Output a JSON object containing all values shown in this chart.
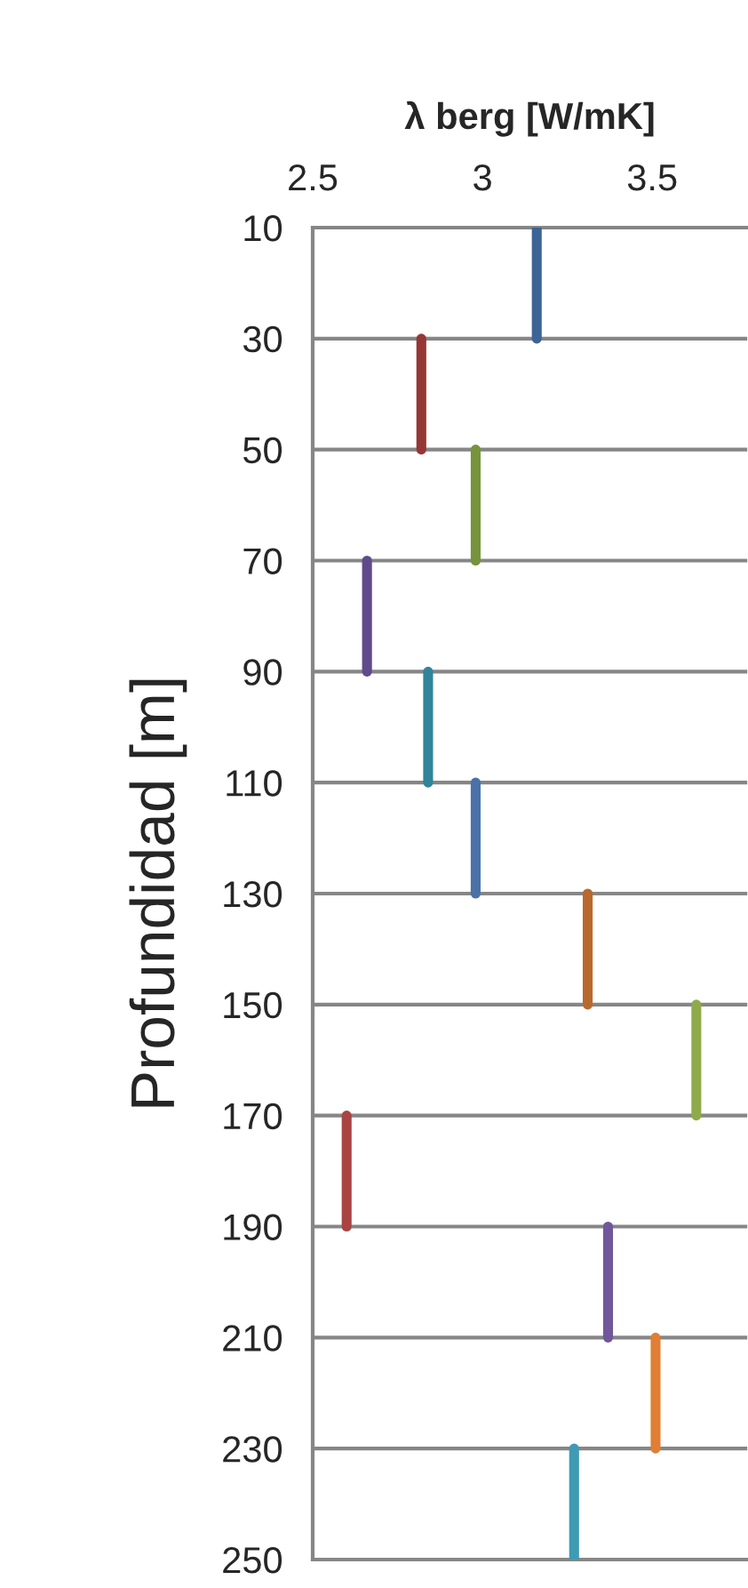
{
  "chart_data": {
    "type": "line",
    "xlabel": "λ berg [W/mK]",
    "ylabel": "Profundidad [m]",
    "xlim": [
      2.5,
      3.78
    ],
    "xticks": [
      2.5,
      3,
      3.5
    ],
    "ylim": [
      250,
      10
    ],
    "yticks": [
      10,
      30,
      50,
      70,
      90,
      110,
      130,
      150,
      170,
      190,
      210,
      230,
      250
    ],
    "grid": "y",
    "marker": "none",
    "line_style": "solid",
    "series": [
      {
        "color": "#3c6496",
        "x": [
          3.16,
          3.16
        ],
        "values": [
          10,
          30
        ]
      },
      {
        "color": "#953735",
        "x": [
          2.82,
          2.82
        ],
        "values": [
          30,
          50
        ]
      },
      {
        "color": "#77933c",
        "x": [
          2.98,
          2.98
        ],
        "values": [
          50,
          70
        ]
      },
      {
        "color": "#5f4b8b",
        "x": [
          2.66,
          2.66
        ],
        "values": [
          70,
          90
        ]
      },
      {
        "color": "#31849b",
        "x": [
          2.84,
          2.84
        ],
        "values": [
          90,
          110
        ]
      },
      {
        "color": "#4a72a8",
        "x": [
          2.98,
          2.98
        ],
        "values": [
          110,
          130
        ]
      },
      {
        "color": "#b9692d",
        "x": [
          3.31,
          3.31
        ],
        "values": [
          130,
          150
        ]
      },
      {
        "color": "#8eaa4a",
        "x": [
          3.63,
          3.63
        ],
        "values": [
          150,
          170
        ]
      },
      {
        "color": "#a94442",
        "x": [
          2.6,
          2.6
        ],
        "values": [
          170,
          190
        ]
      },
      {
        "color": "#70579a",
        "x": [
          3.37,
          3.37
        ],
        "values": [
          190,
          210
        ]
      },
      {
        "color": "#e07e34",
        "x": [
          3.51,
          3.51
        ],
        "values": [
          210,
          230
        ]
      },
      {
        "color": "#3f9ab4",
        "x": [
          3.27,
          3.27
        ],
        "values": [
          230,
          250
        ]
      }
    ]
  }
}
